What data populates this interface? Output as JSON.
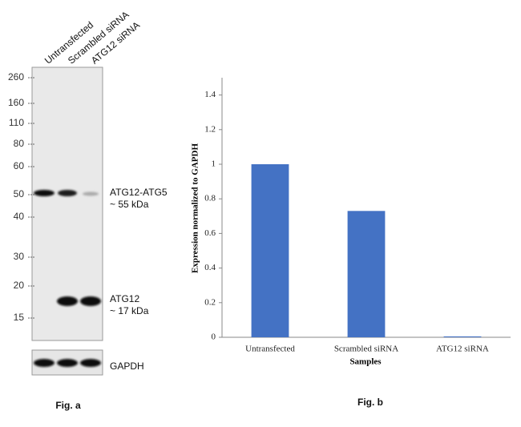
{
  "blot": {
    "lanes": [
      "Untransfected",
      "Scrambled siRNA",
      "ATG12 siRNA"
    ],
    "markers": [
      260,
      160,
      110,
      80,
      60,
      50,
      40,
      30,
      20,
      15
    ],
    "band_labels": [
      "ATG12-ATG5",
      "~ 55 kDa",
      "ATG12",
      "~ 17 kDa"
    ],
    "loading_control": "GAPDH",
    "caption": "Fig. a"
  },
  "chart_data": {
    "type": "bar",
    "categories": [
      "Untransfected",
      "Scrambled siRNA",
      "ATG12 siRNA"
    ],
    "values": [
      1,
      0.73,
      0.005
    ],
    "color": "#4472c4",
    "xlabel": "Samples",
    "ylabel": "Expression normalized to GAPDH",
    "ylim": [
      0,
      1.5
    ],
    "yticks": [
      0,
      0.2,
      0.4,
      0.6,
      0.8,
      1,
      1.2,
      1.4
    ],
    "grid": false,
    "caption": "Fig. b"
  }
}
